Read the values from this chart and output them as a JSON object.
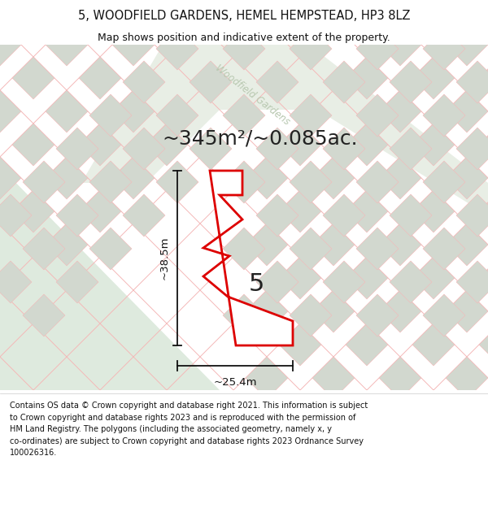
{
  "title_line1": "5, WOODFIELD GARDENS, HEMEL HEMPSTEAD, HP3 8LZ",
  "title_line2": "Map shows position and indicative extent of the property.",
  "area_text": "~345m²/~0.085ac.",
  "property_number": "5",
  "dim_vertical": "~38.5m",
  "dim_horizontal": "~25.4m",
  "road_label": "Woodfield Gardens",
  "footer_text": "Contains OS data © Crown copyright and database right 2021. This information is subject to Crown copyright and database rights 2023 and is reproduced with the permission of HM Land Registry. The polygons (including the associated geometry, namely x, y co-ordinates) are subject to Crown copyright and database rights 2023 Ordnance Survey 100026316.",
  "map_bg_color": "#edf2ea",
  "plot_outline_color": "#dd0000",
  "plot_fill_color": "#ffffff",
  "grid_line_color": "#f5b8b8",
  "block_color": "#d2d8cf",
  "road_label_color": "#b8c8b0",
  "dim_color": "#111111",
  "area_color": "#222222",
  "number_color": "#222222",
  "footer_bg": "#ffffff",
  "title_bg": "#ffffff",
  "green_area_color": "#deeade",
  "road_bg_color": "#e8eee5"
}
